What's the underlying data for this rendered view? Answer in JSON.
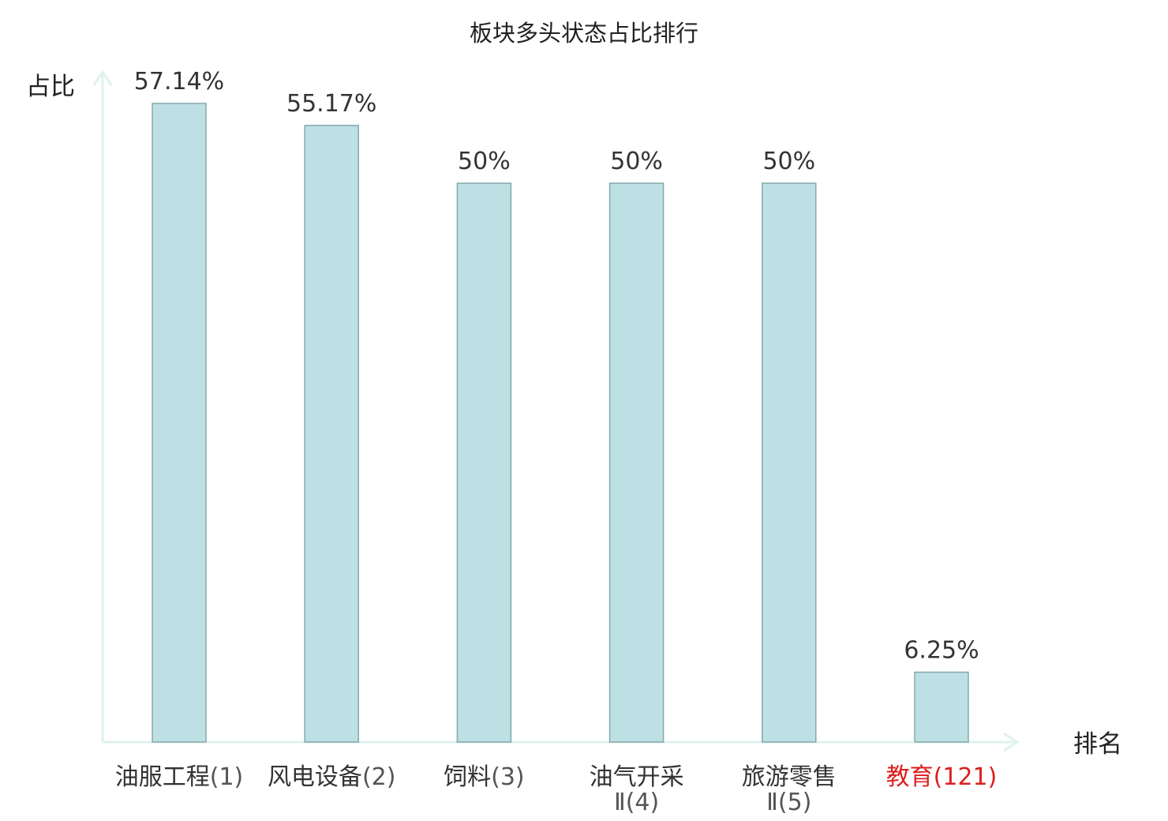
{
  "chart_data": {
    "type": "bar",
    "title": "板块多头状态占比排行",
    "ylabel": "占比",
    "xlabel": "排名",
    "ylim": [
      0,
      60
    ],
    "grid": false,
    "categories": [
      {
        "name": "油服工程",
        "name_line2": "",
        "rank": "(1)",
        "highlight": false
      },
      {
        "name": "风电设备",
        "name_line2": "",
        "rank": "(2)",
        "highlight": false
      },
      {
        "name": "饲料",
        "name_line2": "",
        "rank": "(3)",
        "highlight": false
      },
      {
        "name": "油气开采",
        "name_line2": "Ⅱ",
        "rank": "(4)",
        "highlight": false
      },
      {
        "name": "旅游零售",
        "name_line2": "Ⅱ",
        "rank": "(5)",
        "highlight": false
      },
      {
        "name": "教育",
        "name_line2": "",
        "rank": "(121)",
        "highlight": true
      }
    ],
    "values": [
      57.14,
      55.17,
      50,
      50,
      50,
      6.25
    ],
    "value_labels": [
      "57.14%",
      "55.17%",
      "50%",
      "50%",
      "50%",
      "6.25%"
    ],
    "colors": {
      "bar_fill": "#bce0e3",
      "bar_stroke": "#86a8ab",
      "axis": "#dff2ef",
      "highlight": "#dd1f1f",
      "normal_label": "#333333",
      "rank_label": "#555555"
    }
  }
}
